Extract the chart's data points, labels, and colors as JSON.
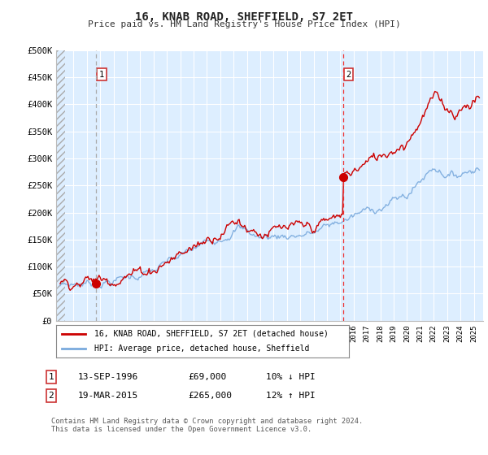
{
  "title": "16, KNAB ROAD, SHEFFIELD, S7 2ET",
  "subtitle": "Price paid vs. HM Land Registry's House Price Index (HPI)",
  "ylim": [
    0,
    500000
  ],
  "yticks": [
    0,
    50000,
    100000,
    150000,
    200000,
    250000,
    300000,
    350000,
    400000,
    450000,
    500000
  ],
  "ytick_labels": [
    "£0",
    "£50K",
    "£100K",
    "£150K",
    "£200K",
    "£250K",
    "£300K",
    "£350K",
    "£400K",
    "£450K",
    "£500K"
  ],
  "sale1_year": 1996.71,
  "sale1_price": 69000,
  "sale2_year": 2015.21,
  "sale2_price": 265000,
  "line_color_property": "#cc0000",
  "line_color_hpi": "#7aaadd",
  "vline1_color": "#aaaaaa",
  "vline2_color": "#ee3333",
  "marker_color": "#cc0000",
  "chart_bg": "#ddeeff",
  "grid_color": "#ffffff",
  "legend_label_property": "16, KNAB ROAD, SHEFFIELD, S7 2ET (detached house)",
  "legend_label_hpi": "HPI: Average price, detached house, Sheffield",
  "footer": "Contains HM Land Registry data © Crown copyright and database right 2024.\nThis data is licensed under the Open Government Licence v3.0.",
  "table_row1": [
    "1",
    "13-SEP-1996",
    "£69,000",
    "10% ↓ HPI"
  ],
  "table_row2": [
    "2",
    "19-MAR-2015",
    "£265,000",
    "12% ↑ HPI"
  ]
}
